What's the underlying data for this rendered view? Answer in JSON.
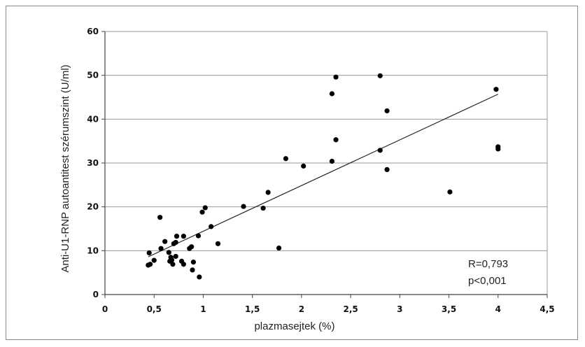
{
  "chart_data": {
    "type": "scatter",
    "title": "",
    "xlabel": "plazmasejtek (%)",
    "ylabel": "Anti-U1-RNP autoantitest szérumszint (U/ml)",
    "xlim": [
      0,
      4.5
    ],
    "ylim": [
      0,
      60
    ],
    "x_ticks": [
      "0",
      "0,5",
      "1",
      "1,5",
      "2",
      "2,5",
      "3",
      "3,5",
      "4",
      "4,5"
    ],
    "y_ticks": [
      "0",
      "10",
      "20",
      "30",
      "40",
      "50",
      "60"
    ],
    "grid": "horizontal",
    "series": [
      {
        "points": [
          [
            0.44,
            6.7
          ],
          [
            0.46,
            6.9
          ],
          [
            0.45,
            9.5
          ],
          [
            0.5,
            7.8
          ],
          [
            0.56,
            17.6
          ],
          [
            0.57,
            10.5
          ],
          [
            0.61,
            12.1
          ],
          [
            0.65,
            9.6
          ],
          [
            0.66,
            7.6
          ],
          [
            0.67,
            8.5
          ],
          [
            0.68,
            7.9
          ],
          [
            0.69,
            6.9
          ],
          [
            0.7,
            11.6
          ],
          [
            0.72,
            11.9
          ],
          [
            0.72,
            8.7
          ],
          [
            0.73,
            13.3
          ],
          [
            0.78,
            7.6
          ],
          [
            0.8,
            6.9
          ],
          [
            0.8,
            13.3
          ],
          [
            0.86,
            10.5
          ],
          [
            0.88,
            10.9
          ],
          [
            0.89,
            5.6
          ],
          [
            0.9,
            7.4
          ],
          [
            0.95,
            13.4
          ],
          [
            0.96,
            4.0
          ],
          [
            0.99,
            18.8
          ],
          [
            1.02,
            19.8
          ],
          [
            1.08,
            15.5
          ],
          [
            1.15,
            11.6
          ],
          [
            1.41,
            20.1
          ],
          [
            1.61,
            19.7
          ],
          [
            1.66,
            23.3
          ],
          [
            1.77,
            10.6
          ],
          [
            1.84,
            31.0
          ],
          [
            2.02,
            29.3
          ],
          [
            2.31,
            30.4
          ],
          [
            2.31,
            45.8
          ],
          [
            2.35,
            49.6
          ],
          [
            2.35,
            35.3
          ],
          [
            2.8,
            49.9
          ],
          [
            2.8,
            32.9
          ],
          [
            2.87,
            41.9
          ],
          [
            2.87,
            28.5
          ],
          [
            3.51,
            23.4
          ],
          [
            3.98,
            46.8
          ],
          [
            4.0,
            33.7
          ],
          [
            4.0,
            33.2
          ]
        ]
      }
    ],
    "trendline": {
      "x": [
        0.44,
        4.0
      ],
      "y": [
        8.6,
        45.7
      ]
    },
    "annotations": [
      "R=0,793",
      "p<0,001"
    ]
  }
}
